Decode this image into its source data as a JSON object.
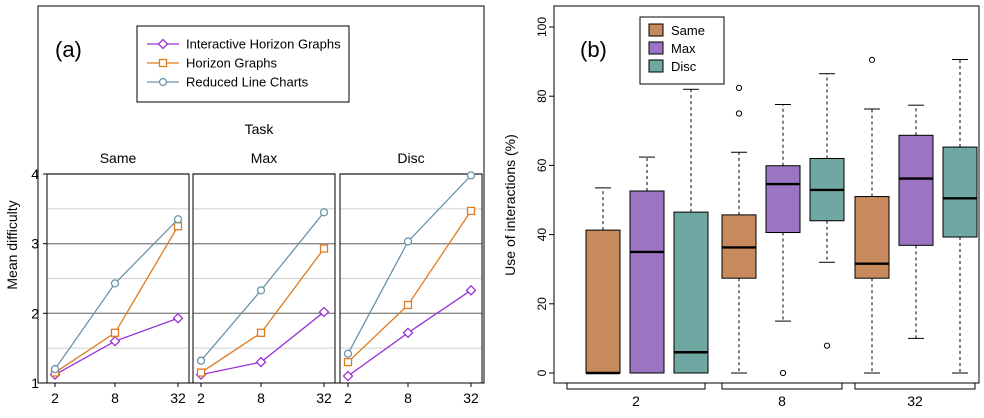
{
  "chart_data": [
    {
      "type": "line",
      "panel_label": "(a)",
      "facet_title": "Task",
      "ylabel": "Mean difficulty",
      "ylim": [
        1,
        4
      ],
      "yticks": [
        "1",
        "2",
        "3",
        "4"
      ],
      "x": [
        "2",
        "8",
        "32"
      ],
      "legend": {
        "placement": "top",
        "entries": [
          "Interactive Horizon Graphs",
          "Horizon Graphs",
          "Reduced Line Charts"
        ]
      },
      "colors": {
        "Interactive Horizon Graphs": "#9b30d9",
        "Horizon Graphs": "#e07b1f",
        "Reduced Line Charts": "#6a94a8"
      },
      "facets": [
        {
          "name": "Same",
          "series": [
            {
              "name": "Interactive Horizon Graphs",
              "marker": "diamond",
              "values": [
                1.12,
                1.6,
                1.93
              ]
            },
            {
              "name": "Horizon Graphs",
              "marker": "square",
              "values": [
                1.15,
                1.72,
                3.25
              ]
            },
            {
              "name": "Reduced Line Charts",
              "marker": "circle",
              "values": [
                1.2,
                2.43,
                3.35
              ]
            }
          ]
        },
        {
          "name": "Max",
          "series": [
            {
              "name": "Interactive Horizon Graphs",
              "marker": "diamond",
              "values": [
                1.12,
                1.3,
                2.02
              ]
            },
            {
              "name": "Horizon Graphs",
              "marker": "square",
              "values": [
                1.15,
                1.72,
                2.93
              ]
            },
            {
              "name": "Reduced Line Charts",
              "marker": "circle",
              "values": [
                1.32,
                2.33,
                3.45
              ]
            }
          ]
        },
        {
          "name": "Disc",
          "series": [
            {
              "name": "Interactive Horizon Graphs",
              "marker": "diamond",
              "values": [
                1.1,
                1.72,
                2.33
              ]
            },
            {
              "name": "Horizon Graphs",
              "marker": "square",
              "values": [
                1.3,
                2.12,
                3.47
              ]
            },
            {
              "name": "Reduced Line Charts",
              "marker": "circle",
              "values": [
                1.42,
                3.03,
                3.98
              ]
            }
          ]
        }
      ]
    },
    {
      "type": "box",
      "panel_label": "(b)",
      "ylabel": "Use of interactions (%)",
      "ylim": [
        0,
        100
      ],
      "yticks": [
        "0",
        "20",
        "40",
        "60",
        "80",
        "100"
      ],
      "categories": [
        "2",
        "8",
        "32"
      ],
      "legend": {
        "placement": "top-left",
        "entries": [
          "Same",
          "Max",
          "Disc"
        ]
      },
      "colors": {
        "Same": "#c68a5c",
        "Max": "#9b74c2",
        "Disc": "#6fa8a2"
      },
      "groups": [
        {
          "category": "2",
          "boxes": [
            {
              "name": "Same",
              "min": 0,
              "q1": 0,
              "median": 0,
              "q3": 41.3,
              "max": 53.5,
              "outliers": []
            },
            {
              "name": "Max",
              "min": 0,
              "q1": 0,
              "median": 35.0,
              "q3": 52.6,
              "max": 62.4,
              "outliers": []
            },
            {
              "name": "Disc",
              "min": 0,
              "q1": 0,
              "median": 6.0,
              "q3": 46.5,
              "max": 82.0,
              "outliers": []
            }
          ]
        },
        {
          "category": "8",
          "boxes": [
            {
              "name": "Same",
              "min": 0,
              "q1": 27.4,
              "median": 36.3,
              "q3": 45.7,
              "max": 63.8,
              "outliers": [
                75.0,
                82.4
              ]
            },
            {
              "name": "Max",
              "min": 15.0,
              "q1": 40.6,
              "median": 54.6,
              "q3": 59.9,
              "max": 77.6,
              "outliers": [
                0
              ]
            },
            {
              "name": "Disc",
              "min": 32.0,
              "q1": 44.0,
              "median": 52.9,
              "q3": 62.0,
              "max": 86.5,
              "outliers": [
                7.9
              ]
            }
          ]
        },
        {
          "category": "32",
          "boxes": [
            {
              "name": "Same",
              "min": 0,
              "q1": 27.4,
              "median": 31.6,
              "q3": 51.0,
              "max": 76.3,
              "outliers": [
                90.5
              ]
            },
            {
              "name": "Max",
              "min": 10.0,
              "q1": 36.9,
              "median": 56.2,
              "q3": 68.7,
              "max": 77.4,
              "outliers": []
            },
            {
              "name": "Disc",
              "min": 0,
              "q1": 39.3,
              "median": 50.5,
              "q3": 65.3,
              "max": 90.6,
              "outliers": []
            }
          ]
        }
      ]
    }
  ]
}
